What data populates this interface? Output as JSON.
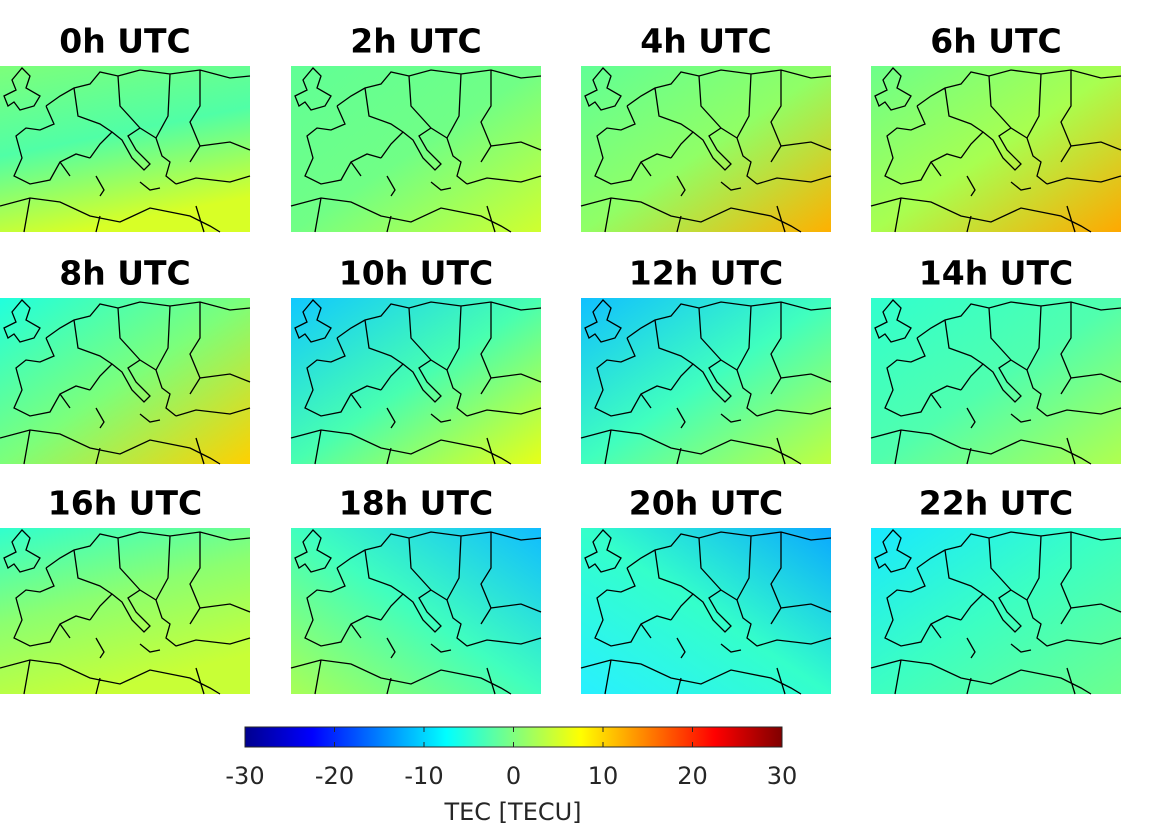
{
  "panels": [
    {
      "title": "0h UTC"
    },
    {
      "title": "2h UTC"
    },
    {
      "title": "4h UTC"
    },
    {
      "title": "6h UTC"
    },
    {
      "title": "8h UTC"
    },
    {
      "title": "10h UTC"
    },
    {
      "title": "12h UTC"
    },
    {
      "title": "14h UTC"
    },
    {
      "title": "16h UTC"
    },
    {
      "title": "18h UTC"
    },
    {
      "title": "20h UTC"
    },
    {
      "title": "22h UTC"
    }
  ],
  "colorbar": {
    "label": "TEC [TECU]",
    "lim": [
      -30,
      30
    ],
    "ticks": [
      -30,
      -20,
      -10,
      0,
      10,
      20,
      30
    ]
  }
}
